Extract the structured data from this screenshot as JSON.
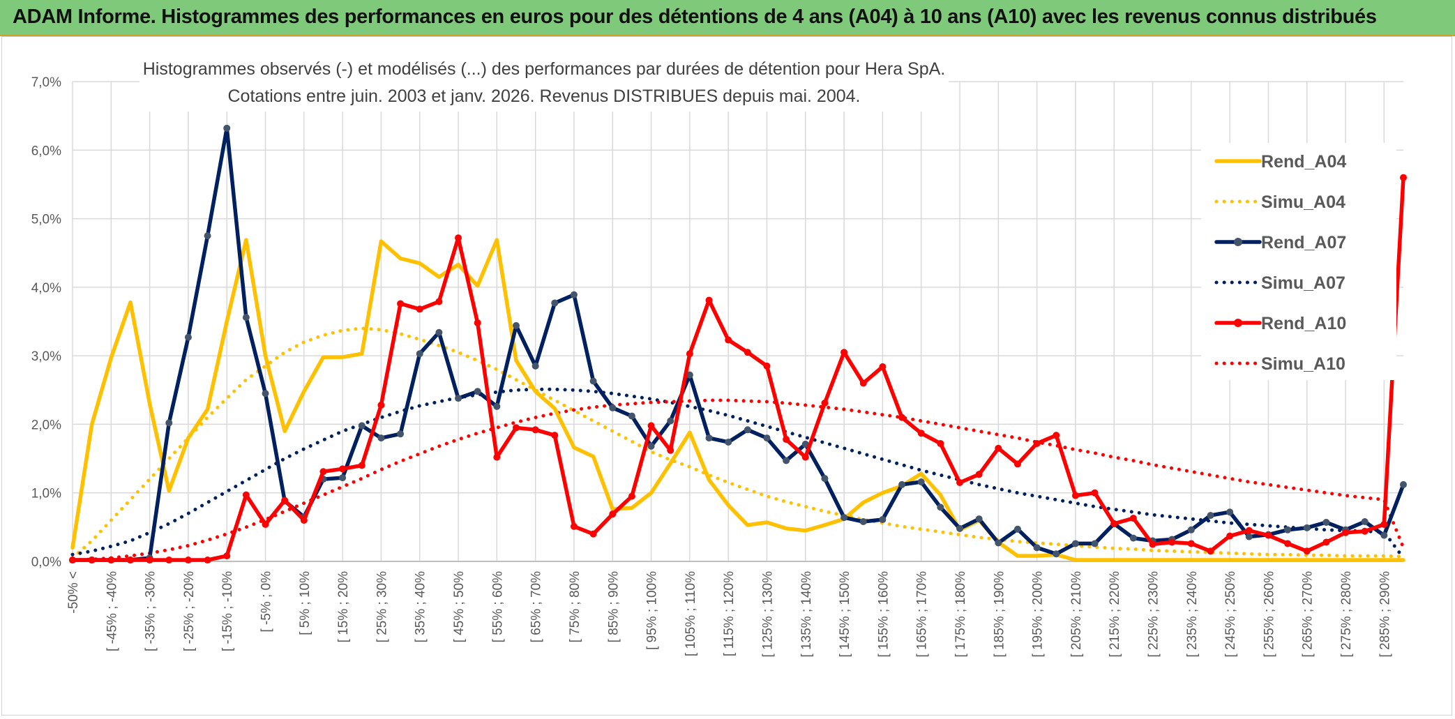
{
  "page": {
    "banner_title": "ADAM Informe. Histogrammes des performances en euros pour des détentions de 4 ans (A04) à 10 ans (A10) avec les revenus connus distribués"
  },
  "colors": {
    "banner_bg": "#7fc97a",
    "A04": "#ffc000",
    "A07": "#002060",
    "A10": "#ff0000",
    "marker_A07": "#44546a"
  },
  "chart_data": {
    "type": "line",
    "title": "Histogrammes observés (-) et modélisés (...) des performances par durées de détention pour Hera SpA.",
    "subtitle": "Cotations entre juin. 2003 et janv. 2026. Revenus DISTRIBUES depuis mai. 2004.",
    "ylim": [
      0,
      7
    ],
    "yticks": [
      "0,0%",
      "1,0%",
      "2,0%",
      "3,0%",
      "4,0%",
      "5,0%",
      "6,0%",
      "7,0%"
    ],
    "x_count": 70,
    "tick_labels": [
      "-50% <",
      "[ -45% ; -40%",
      "[ -35% ; -30%",
      "[ -25% ; -20%",
      "[ -15% ; -10%",
      "[ -5% ; 0%",
      "[ 5% ; 10%",
      "[ 15% ; 20%",
      "[ 25% ; 30%",
      "[ 35% ; 40%",
      "[ 45% ; 50%",
      "[ 55% ; 60%",
      "[ 65% ; 70%",
      "[ 75% ; 80%",
      "[ 85% ; 90%",
      "[ 95% ; 100%",
      "[ 105% ; 110%",
      "[ 115% ; 120%",
      "[ 125% ; 130%",
      "[ 135% ; 140%",
      "[ 145% ; 150%",
      "[ 155% ; 160%",
      "[ 165% ; 170%",
      "[ 175% ; 180%",
      "[ 185% ; 190%",
      "[ 195% ; 200%",
      "[ 205% ; 210%",
      "[ 215% ; 220%",
      "[ 225% ; 230%",
      "[ 235% ; 240%",
      "[ 245% ; 250%",
      "[ 255% ; 260%",
      "[ 265% ; 270%",
      "[ 275% ; 280%",
      "[ 285% ; 290%"
    ],
    "legend_position": "right",
    "series": [
      {
        "name": "Rend_A04",
        "style": "solid",
        "color": "#ffc000",
        "markers": false,
        "values": [
          0.2,
          2.0,
          2.97,
          3.78,
          2.3,
          1.03,
          1.8,
          2.22,
          3.5,
          4.69,
          3.0,
          1.9,
          2.48,
          2.98,
          2.98,
          3.03,
          4.67,
          4.42,
          4.35,
          4.15,
          4.33,
          4.02,
          4.69,
          2.93,
          2.48,
          2.23,
          1.66,
          1.53,
          0.76,
          0.78,
          1.0,
          1.43,
          1.88,
          1.19,
          0.82,
          0.53,
          0.57,
          0.48,
          0.45,
          0.53,
          0.62,
          0.86,
          1.0,
          1.1,
          1.28,
          0.97,
          0.46,
          0.6,
          0.28,
          0.08,
          0.08,
          0.1,
          0.02,
          0.02,
          0.02,
          0.02,
          0.02,
          0.02,
          0.02,
          0.02,
          0.02,
          0.02,
          0.02,
          0.02,
          0.02,
          0.02,
          0.02,
          0.02,
          0.02,
          0.02
        ]
      },
      {
        "name": "Simu_A04",
        "style": "dotted",
        "color": "#ffc000",
        "markers": false,
        "values": [
          0.05,
          0.3,
          0.6,
          0.9,
          1.2,
          1.5,
          1.8,
          2.1,
          2.38,
          2.65,
          2.85,
          3.05,
          3.2,
          3.3,
          3.37,
          3.4,
          3.38,
          3.32,
          3.24,
          3.15,
          3.05,
          2.93,
          2.8,
          2.65,
          2.5,
          2.35,
          2.2,
          2.05,
          1.9,
          1.75,
          1.6,
          1.48,
          1.38,
          1.26,
          1.15,
          1.05,
          0.95,
          0.87,
          0.8,
          0.73,
          0.67,
          0.61,
          0.56,
          0.51,
          0.47,
          0.43,
          0.39,
          0.35,
          0.32,
          0.29,
          0.27,
          0.25,
          0.23,
          0.21,
          0.19,
          0.18,
          0.16,
          0.15,
          0.14,
          0.13,
          0.12,
          0.11,
          0.1,
          0.1,
          0.09,
          0.09,
          0.08,
          0.08,
          0.08,
          0.07
        ]
      },
      {
        "name": "Rend_A07",
        "style": "solid",
        "color": "#002060",
        "markers": true,
        "values": [
          0.02,
          0.02,
          0.02,
          0.02,
          0.05,
          2.02,
          3.27,
          4.75,
          6.32,
          3.56,
          2.45,
          0.88,
          0.65,
          1.2,
          1.22,
          1.98,
          1.8,
          1.86,
          3.03,
          3.34,
          2.38,
          2.48,
          2.26,
          3.44,
          2.85,
          3.77,
          3.89,
          2.63,
          2.24,
          2.12,
          1.68,
          2.05,
          2.72,
          1.8,
          1.74,
          1.92,
          1.8,
          1.47,
          1.71,
          1.21,
          0.64,
          0.58,
          0.61,
          1.12,
          1.16,
          0.79,
          0.48,
          0.62,
          0.27,
          0.47,
          0.2,
          0.11,
          0.26,
          0.26,
          0.55,
          0.34,
          0.3,
          0.32,
          0.46,
          0.67,
          0.72,
          0.36,
          0.39,
          0.46,
          0.49,
          0.57,
          0.46,
          0.58,
          0.38,
          1.12
        ]
      },
      {
        "name": "Simu_A07",
        "style": "dotted",
        "color": "#002060",
        "markers": false,
        "values": [
          0.1,
          0.15,
          0.22,
          0.3,
          0.42,
          0.55,
          0.7,
          0.86,
          1.02,
          1.18,
          1.34,
          1.5,
          1.64,
          1.77,
          1.9,
          2.0,
          2.1,
          2.19,
          2.27,
          2.33,
          2.39,
          2.43,
          2.47,
          2.5,
          2.51,
          2.51,
          2.5,
          2.48,
          2.45,
          2.41,
          2.37,
          2.32,
          2.26,
          2.2,
          2.13,
          2.05,
          1.97,
          1.89,
          1.81,
          1.73,
          1.65,
          1.57,
          1.49,
          1.41,
          1.33,
          1.26,
          1.19,
          1.12,
          1.06,
          1.0,
          0.95,
          0.9,
          0.85,
          0.8,
          0.76,
          0.72,
          0.68,
          0.65,
          0.62,
          0.59,
          0.56,
          0.54,
          0.52,
          0.5,
          0.48,
          0.46,
          0.45,
          0.44,
          0.43,
          0.05
        ]
      },
      {
        "name": "Rend_A10",
        "style": "solid",
        "color": "#ff0000",
        "markers": true,
        "values": [
          0.02,
          0.02,
          0.02,
          0.02,
          0.02,
          0.02,
          0.02,
          0.02,
          0.08,
          0.97,
          0.54,
          0.89,
          0.6,
          1.31,
          1.35,
          1.4,
          2.28,
          3.76,
          3.68,
          3.79,
          4.72,
          3.48,
          1.52,
          1.95,
          1.92,
          1.84,
          0.51,
          0.4,
          0.69,
          0.95,
          1.98,
          1.62,
          3.03,
          3.81,
          3.23,
          3.05,
          2.85,
          1.78,
          1.52,
          2.31,
          3.05,
          2.6,
          2.84,
          2.1,
          1.87,
          1.72,
          1.15,
          1.27,
          1.65,
          1.42,
          1.72,
          1.84,
          0.96,
          1.0,
          0.55,
          0.63,
          0.25,
          0.28,
          0.26,
          0.15,
          0.37,
          0.45,
          0.38,
          0.26,
          0.15,
          0.28,
          0.42,
          0.44,
          0.54,
          5.6
        ]
      },
      {
        "name": "Simu_A10",
        "style": "dotted",
        "color": "#ff0000",
        "markers": false,
        "values": [
          0.02,
          0.03,
          0.05,
          0.08,
          0.12,
          0.17,
          0.23,
          0.31,
          0.4,
          0.5,
          0.61,
          0.73,
          0.85,
          0.97,
          1.09,
          1.21,
          1.34,
          1.46,
          1.57,
          1.68,
          1.78,
          1.87,
          1.95,
          2.03,
          2.1,
          2.16,
          2.21,
          2.25,
          2.28,
          2.3,
          2.32,
          2.33,
          2.34,
          2.35,
          2.35,
          2.34,
          2.33,
          2.31,
          2.28,
          2.25,
          2.22,
          2.18,
          2.14,
          2.1,
          2.05,
          2.0,
          1.95,
          1.9,
          1.85,
          1.8,
          1.74,
          1.69,
          1.63,
          1.58,
          1.52,
          1.47,
          1.41,
          1.36,
          1.31,
          1.26,
          1.21,
          1.16,
          1.12,
          1.08,
          1.04,
          1.0,
          0.96,
          0.93,
          0.9,
          0.2
        ]
      }
    ]
  }
}
